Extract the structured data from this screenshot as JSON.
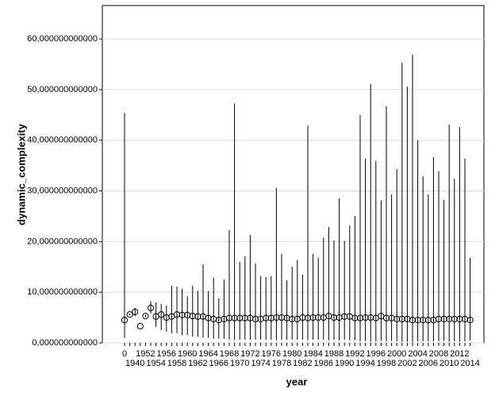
{
  "chart_data": {
    "type": "errorbar",
    "x_label": "year",
    "y_label": "dynamic_complexity",
    "categories": [
      "0",
      null,
      "1940",
      null,
      "1952",
      null,
      "1954",
      null,
      "1956",
      null,
      "1958",
      null,
      "1960",
      null,
      "1962",
      null,
      "1964",
      null,
      "1966",
      null,
      "1968",
      null,
      "1970",
      null,
      "1972",
      null,
      "1974",
      null,
      "1976",
      null,
      "1978",
      null,
      "1980",
      null,
      "1982",
      null,
      "1984",
      null,
      "1986",
      null,
      "1988",
      null,
      "1990",
      null,
      "1992",
      null,
      "1994",
      null,
      "1996",
      null,
      "1998",
      null,
      "2000",
      null,
      "2002",
      null,
      "2004",
      null,
      "2006",
      null,
      "2008",
      null,
      "2010",
      null,
      "2012",
      null,
      "2014"
    ],
    "values": [
      4.5,
      5.6,
      6.1,
      3.3,
      5.3,
      6.9,
      5.2,
      5.6,
      5.0,
      5.2,
      5.6,
      5.5,
      5.5,
      5.3,
      5.2,
      5.2,
      4.9,
      4.7,
      4.5,
      4.7,
      4.9,
      4.9,
      4.9,
      4.9,
      4.9,
      4.7,
      4.7,
      4.9,
      4.9,
      5.0,
      5.0,
      4.9,
      4.7,
      4.7,
      5.0,
      4.9,
      5.0,
      5.0,
      5.0,
      5.3,
      5.0,
      5.0,
      5.2,
      5.2,
      4.9,
      4.9,
      5.0,
      5.0,
      4.9,
      5.3,
      4.9,
      4.9,
      4.7,
      4.7,
      4.7,
      4.5,
      4.5,
      4.5,
      4.5,
      4.5,
      4.7,
      4.7,
      4.7,
      4.7,
      4.7,
      4.7,
      4.5
    ],
    "low": [
      1.0,
      5.4,
      5.3,
      3.3,
      5.0,
      5.8,
      3.1,
      2.5,
      2.2,
      1.9,
      1.9,
      1.5,
      1.5,
      1.2,
      1.2,
      1.0,
      1.0,
      0.8,
      0.8,
      0.8,
      0.6,
      0.5,
      0.6,
      0.6,
      0.6,
      0.6,
      0.6,
      0.6,
      0.6,
      0.5,
      0.6,
      0.6,
      0.6,
      0.6,
      0.6,
      0.5,
      0.6,
      0.6,
      0.6,
      0.5,
      0.6,
      0.5,
      0.6,
      0.5,
      0.5,
      0.3,
      0.4,
      0.2,
      0.3,
      0.4,
      0.3,
      0.4,
      0.3,
      0.2,
      0.2,
      0.1,
      0.3,
      0.3,
      0.3,
      0.3,
      0.3,
      0.4,
      0.2,
      0.3,
      0.2,
      0.3,
      0.5
    ],
    "high": [
      45.4,
      5.8,
      6.9,
      3.3,
      5.6,
      8.2,
      8.0,
      7.7,
      7.4,
      11.3,
      11.1,
      10.7,
      9.2,
      11.3,
      10.3,
      15.5,
      10.2,
      12.9,
      8.8,
      12.5,
      22.3,
      47.3,
      16.0,
      17.1,
      21.3,
      15.7,
      13.2,
      13.0,
      13.2,
      30.6,
      17.6,
      12.4,
      15.0,
      16.3,
      13.5,
      42.9,
      17.6,
      16.8,
      20.8,
      22.9,
      20.2,
      28.5,
      20.1,
      23.2,
      25.1,
      45.0,
      36.4,
      51.1,
      35.9,
      28.1,
      46.7,
      29.3,
      34.3,
      55.3,
      50.6,
      56.9,
      40.0,
      32.9,
      29.3,
      36.7,
      33.9,
      28.2,
      43.1,
      32.4,
      42.6,
      36.4,
      16.8
    ],
    "color": "#000000",
    "ylim": [
      0,
      66.6
    ],
    "yticks": [
      {
        "value": 0,
        "label": "0,000000000000"
      },
      {
        "value": 10,
        "label": "10,000000000000"
      },
      {
        "value": 20,
        "label": "20,000000000000"
      },
      {
        "value": 30,
        "label": "30,000000000000"
      },
      {
        "value": 40,
        "label": "40,000000000000"
      },
      {
        "value": 50,
        "label": "50,000000000000"
      },
      {
        "value": 60,
        "label": "60,000000000000"
      }
    ],
    "grid": true
  }
}
